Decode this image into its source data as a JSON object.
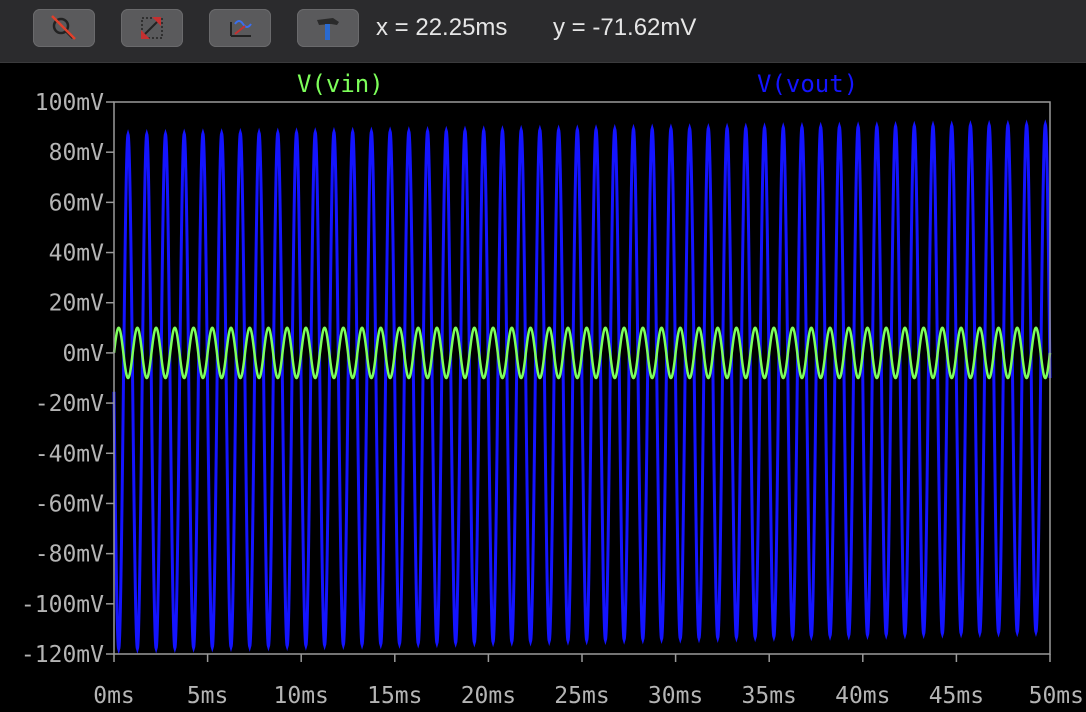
{
  "toolbar": {
    "buttons": [
      {
        "name": "autorange-button",
        "icon": "zoom-cancel-icon"
      },
      {
        "name": "zoom-to-fit-button",
        "icon": "zoom-extents-icon"
      },
      {
        "name": "pan-button",
        "icon": "waveform-pan-icon"
      },
      {
        "name": "settings-button",
        "icon": "hammer-icon"
      }
    ],
    "cursor_x": "x = 22.25ms",
    "cursor_y": "y = -71.62mV"
  },
  "chart_data": {
    "type": "line",
    "xlabel": "",
    "ylabel": "",
    "xlim": [
      0,
      50
    ],
    "ylim": [
      -120,
      100
    ],
    "x_unit": "ms",
    "y_unit": "mV",
    "x_ticks": [
      "0ms",
      "5ms",
      "10ms",
      "15ms",
      "20ms",
      "25ms",
      "30ms",
      "35ms",
      "40ms",
      "45ms",
      "50ms"
    ],
    "x_tick_values": [
      0,
      5,
      10,
      15,
      20,
      25,
      30,
      35,
      40,
      45,
      50
    ],
    "y_ticks": [
      "100mV",
      "80mV",
      "60mV",
      "40mV",
      "20mV",
      "0mV",
      "-20mV",
      "-40mV",
      "-60mV",
      "-80mV",
      "-100mV",
      "-120mV"
    ],
    "y_tick_values": [
      100,
      80,
      60,
      40,
      20,
      0,
      -20,
      -40,
      -60,
      -80,
      -100,
      -120
    ],
    "grid": false,
    "series": [
      {
        "name": "V(vin)",
        "color": "#7dff5a",
        "frequency_hz": 1000,
        "amplitude_mv": 10,
        "offset_mv": 0,
        "phase": "sine"
      },
      {
        "name": "V(vout)",
        "color": "#1414ff",
        "frequency_hz": 1000,
        "amplitude_mv": 100,
        "offset_mv": -12,
        "phase": "inverted-sine",
        "start_peak_mv": 87,
        "start_trough_mv": -118,
        "end_peak_mv": 91,
        "end_trough_mv": -111
      }
    ]
  }
}
